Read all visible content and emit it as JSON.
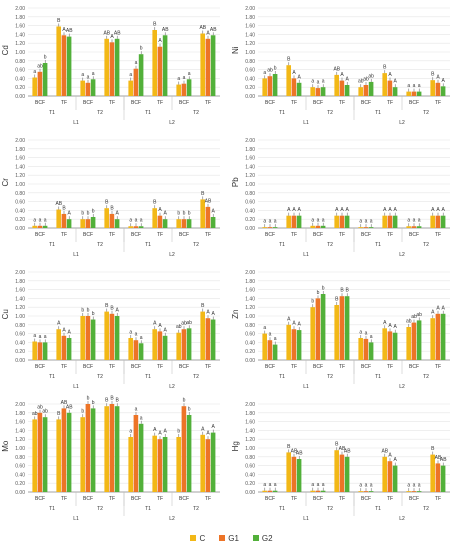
{
  "chart_data": [
    {
      "type": "bar",
      "ylabel": "Cd",
      "ylim": [
        0,
        2
      ],
      "yticks": [
        "0.00",
        "0.20",
        "0.40",
        "0.60",
        "0.80",
        "1.00",
        "1.20",
        "1.40",
        "1.60",
        "1.80",
        "2.00"
      ],
      "categories": [
        "BCF",
        "TF",
        "BCF",
        "TF",
        "BCF",
        "TF",
        "BCF",
        "TF"
      ],
      "groups_t": [
        "T1",
        "T2",
        "T1",
        "T2"
      ],
      "groups_l": [
        "L1",
        "L2"
      ],
      "series": [
        {
          "name": "C",
          "values": [
            0.42,
            1.58,
            0.35,
            1.3,
            0.35,
            1.5,
            0.26,
            1.42
          ]
        },
        {
          "name": "G1",
          "values": [
            0.55,
            1.38,
            0.3,
            1.22,
            0.62,
            1.12,
            0.28,
            1.3
          ]
        },
        {
          "name": "G2",
          "values": [
            0.75,
            1.35,
            0.38,
            1.3,
            0.95,
            1.38,
            0.38,
            1.38
          ]
        }
      ],
      "labels": [
        [
          "a",
          "ab",
          "b"
        ],
        [
          "B",
          "A",
          "AB"
        ],
        [
          "a",
          "a",
          "a"
        ],
        [
          "AB",
          "A",
          "AB"
        ],
        [
          "a",
          "a",
          "b"
        ],
        [
          "B",
          "A",
          "AB"
        ],
        [
          "a",
          "a",
          "a"
        ],
        [
          "AB",
          "A",
          "AB"
        ]
      ]
    },
    {
      "type": "bar",
      "ylabel": "Ni",
      "ylim": [
        0,
        2
      ],
      "yticks": [
        "0.00",
        "0.20",
        "0.40",
        "0.60",
        "0.80",
        "1.00",
        "1.20",
        "1.40",
        "1.60",
        "1.80",
        "2.00"
      ],
      "categories": [
        "BCF",
        "TF",
        "BCF",
        "TF",
        "BCF",
        "TF",
        "BCF",
        "TF"
      ],
      "groups_t": [
        "T1",
        "T2",
        "T1",
        "T2"
      ],
      "groups_l": [
        "L1",
        "L2"
      ],
      "series": [
        {
          "name": "C",
          "values": [
            0.4,
            0.7,
            0.2,
            0.48,
            0.2,
            0.52,
            0.1,
            0.36
          ]
        },
        {
          "name": "G1",
          "values": [
            0.45,
            0.4,
            0.18,
            0.35,
            0.25,
            0.35,
            0.1,
            0.3
          ]
        },
        {
          "name": "G2",
          "values": [
            0.5,
            0.3,
            0.2,
            0.25,
            0.32,
            0.2,
            0.1,
            0.22
          ]
        }
      ],
      "labels": [
        [
          "a",
          "ab",
          "b"
        ],
        [
          "B",
          "A",
          "A"
        ],
        [
          "a",
          "a",
          "a"
        ],
        [
          "AB",
          "A",
          "A"
        ],
        [
          "ab",
          "ab",
          "ab"
        ],
        [
          "B",
          "A",
          "A"
        ],
        [
          "a",
          "a",
          "a"
        ],
        [
          "B",
          "A",
          "A"
        ]
      ]
    },
    {
      "type": "bar",
      "ylabel": "Cr",
      "ylim": [
        0,
        2
      ],
      "yticks": [
        "0.00",
        "0.20",
        "0.40",
        "0.60",
        "0.80",
        "1.00",
        "1.20",
        "1.40",
        "1.60",
        "1.80",
        "2.00"
      ],
      "categories": [
        "BCF",
        "TF",
        "BCF",
        "TF",
        "BCF",
        "TF",
        "BCF",
        "TF"
      ],
      "groups_t": [
        "T1",
        "T2",
        "T1",
        "T2"
      ],
      "groups_l": [
        "L1",
        "L2"
      ],
      "series": [
        {
          "name": "C",
          "values": [
            0.05,
            0.42,
            0.2,
            0.45,
            0.04,
            0.45,
            0.2,
            0.65
          ]
        },
        {
          "name": "G1",
          "values": [
            0.05,
            0.32,
            0.2,
            0.32,
            0.04,
            0.28,
            0.2,
            0.48
          ]
        },
        {
          "name": "G2",
          "values": [
            0.05,
            0.2,
            0.25,
            0.2,
            0.04,
            0.2,
            0.2,
            0.25
          ]
        }
      ],
      "labels": [
        [
          "a",
          "a",
          "a"
        ],
        [
          "AB",
          "B",
          "A"
        ],
        [
          "b",
          "b",
          "b"
        ],
        [
          "B",
          "B",
          "A"
        ],
        [
          "a",
          "a",
          "a"
        ],
        [
          "B",
          "A",
          "A"
        ],
        [
          "b",
          "b",
          "b"
        ],
        [
          "B",
          "AB",
          "A"
        ]
      ]
    },
    {
      "type": "bar",
      "ylabel": "Pb",
      "ylim": [
        0,
        2
      ],
      "yticks": [
        "0.00",
        "0.20",
        "0.40",
        "0.60",
        "0.80",
        "1.00",
        "1.20",
        "1.40",
        "1.60",
        "1.80",
        "2.00"
      ],
      "categories": [
        "BCF",
        "TF",
        "BCF",
        "TF",
        "BCF",
        "TF",
        "BCF",
        "TF"
      ],
      "groups_t": [
        "T1",
        "T2",
        "T1",
        "T2"
      ],
      "groups_l": [
        "L1",
        "L2"
      ],
      "series": [
        {
          "name": "C",
          "values": [
            0.02,
            0.28,
            0.05,
            0.28,
            0.02,
            0.28,
            0.04,
            0.28
          ]
        },
        {
          "name": "G1",
          "values": [
            0.02,
            0.28,
            0.05,
            0.28,
            0.02,
            0.28,
            0.04,
            0.28
          ]
        },
        {
          "name": "G2",
          "values": [
            0.02,
            0.28,
            0.05,
            0.28,
            0.02,
            0.28,
            0.04,
            0.28
          ]
        }
      ],
      "labels": [
        [
          "a",
          "a",
          "a"
        ],
        [
          "A",
          "A",
          "A"
        ],
        [
          "a",
          "a",
          "a"
        ],
        [
          "A",
          "A",
          "A"
        ],
        [
          "a",
          "a",
          "a"
        ],
        [
          "A",
          "A",
          "A"
        ],
        [
          "a",
          "a",
          "a"
        ],
        [
          "A",
          "A",
          "A"
        ]
      ]
    },
    {
      "type": "bar",
      "ylabel": "Cu",
      "ylim": [
        0,
        2
      ],
      "yticks": [
        "0.00",
        "0.20",
        "0.40",
        "0.60",
        "0.80",
        "1.00",
        "1.20",
        "1.40",
        "1.60",
        "1.80",
        "2.00"
      ],
      "categories": [
        "BCF",
        "TF",
        "BCF",
        "TF",
        "BCF",
        "TF",
        "BCF",
        "TF"
      ],
      "groups_t": [
        "T1",
        "T2",
        "T1",
        "T2"
      ],
      "groups_l": [
        "L1",
        "L2"
      ],
      "series": [
        {
          "name": "C",
          "values": [
            0.42,
            0.7,
            1.0,
            1.1,
            0.5,
            0.7,
            0.62,
            1.1
          ]
        },
        {
          "name": "G1",
          "values": [
            0.4,
            0.55,
            1.0,
            1.05,
            0.45,
            0.65,
            0.7,
            0.95
          ]
        },
        {
          "name": "G2",
          "values": [
            0.4,
            0.5,
            0.92,
            1.0,
            0.38,
            0.55,
            0.72,
            0.92
          ]
        }
      ],
      "labels": [
        [
          "a",
          "a",
          "a"
        ],
        [
          "A",
          "A",
          "A"
        ],
        [
          "b",
          "b",
          "b"
        ],
        [
          "B",
          "B",
          "A"
        ],
        [
          "a",
          "a",
          "a"
        ],
        [
          "A",
          "A",
          "A"
        ],
        [
          "ab",
          "ab",
          "ab"
        ],
        [
          "B",
          "A",
          "A"
        ]
      ]
    },
    {
      "type": "bar",
      "ylabel": "Zn",
      "ylim": [
        0,
        2
      ],
      "yticks": [
        "0.00",
        "0.20",
        "0.40",
        "0.60",
        "0.80",
        "1.00",
        "1.20",
        "1.40",
        "1.60",
        "1.80",
        "2.00"
      ],
      "categories": [
        "BCF",
        "TF",
        "BCF",
        "TF",
        "BCF",
        "TF",
        "BCF",
        "TF"
      ],
      "groups_t": [
        "T1",
        "T2",
        "T1",
        "T2"
      ],
      "groups_l": [
        "L1",
        "L2"
      ],
      "series": [
        {
          "name": "C",
          "values": [
            0.6,
            0.8,
            1.2,
            1.25,
            0.5,
            0.72,
            0.75,
            0.95
          ]
        },
        {
          "name": "G1",
          "values": [
            0.45,
            0.7,
            1.4,
            1.45,
            0.48,
            0.65,
            0.85,
            1.05
          ]
        },
        {
          "name": "G2",
          "values": [
            0.35,
            0.68,
            1.5,
            1.45,
            0.4,
            0.62,
            0.9,
            1.05
          ]
        }
      ],
      "labels": [
        [
          "a",
          "a",
          "a"
        ],
        [
          "A",
          "A",
          "A"
        ],
        [
          "b",
          "b",
          "b"
        ],
        [
          "B",
          "B",
          "B"
        ],
        [
          "a",
          "a",
          "a"
        ],
        [
          "A",
          "A",
          "A"
        ],
        [
          "ab",
          "ab",
          "ab"
        ],
        [
          "A",
          "A",
          "A"
        ]
      ]
    },
    {
      "type": "bar",
      "ylabel": "Mo",
      "ylim": [
        0,
        2
      ],
      "yticks": [
        "0.00",
        "0.20",
        "0.40",
        "0.60",
        "0.80",
        "1.00",
        "1.20",
        "1.40",
        "1.60",
        "1.80",
        "2.00"
      ],
      "categories": [
        "BCF",
        "TF",
        "BCF",
        "TF",
        "BCF",
        "TF",
        "BCF",
        "TF"
      ],
      "groups_t": [
        "T1",
        "T2",
        "T1",
        "T2"
      ],
      "groups_l": [
        "L1",
        "L2"
      ],
      "series": [
        {
          "name": "C",
          "values": [
            1.65,
            1.65,
            1.7,
            1.95,
            1.25,
            1.28,
            1.25,
            1.3
          ]
        },
        {
          "name": "G1",
          "values": [
            1.8,
            1.9,
            2.0,
            2.0,
            1.75,
            1.2,
            1.95,
            1.2
          ]
        },
        {
          "name": "G2",
          "values": [
            1.7,
            1.8,
            1.9,
            1.95,
            1.55,
            1.25,
            1.75,
            1.35
          ]
        }
      ],
      "labels": [
        [
          "ab",
          "ab",
          "ab"
        ],
        [
          "B",
          "AB",
          "AB"
        ],
        [
          "b",
          "b",
          "b"
        ],
        [
          "B",
          "B",
          "B"
        ],
        [
          "a",
          "a",
          "a"
        ],
        [
          "A",
          "A",
          "A"
        ],
        [
          "b",
          "b",
          "b"
        ],
        [
          "A",
          "A",
          "A"
        ]
      ]
    },
    {
      "type": "bar",
      "ylabel": "Hg",
      "ylim": [
        0,
        2
      ],
      "yticks": [
        "0.00",
        "0.20",
        "0.40",
        "0.60",
        "0.80",
        "1.00",
        "1.20",
        "1.40",
        "1.60",
        "1.80",
        "2.00"
      ],
      "categories": [
        "BCF",
        "TF",
        "BCF",
        "TF",
        "BCF",
        "TF",
        "BCF",
        "TF"
      ],
      "groups_t": [
        "T1",
        "T2",
        "T1",
        "T2"
      ],
      "groups_l": [
        "L1",
        "L2"
      ],
      "series": [
        {
          "name": "C",
          "values": [
            0.03,
            0.9,
            0.03,
            0.95,
            0.02,
            0.8,
            0.02,
            0.85
          ]
        },
        {
          "name": "G1",
          "values": [
            0.03,
            0.8,
            0.03,
            0.85,
            0.02,
            0.7,
            0.02,
            0.65
          ]
        },
        {
          "name": "G2",
          "values": [
            0.03,
            0.75,
            0.03,
            0.8,
            0.02,
            0.6,
            0.02,
            0.6
          ]
        }
      ],
      "labels": [
        [
          "a",
          "a",
          "a"
        ],
        [
          "B",
          "AB",
          "AB"
        ],
        [
          "a",
          "a",
          "a"
        ],
        [
          "B",
          "AB",
          "AB"
        ],
        [
          "a",
          "a",
          "a"
        ],
        [
          "AB",
          "A",
          "A"
        ],
        [
          "a",
          "a",
          "a"
        ],
        [
          "B",
          "AB",
          "AB"
        ]
      ]
    }
  ],
  "legend": {
    "items": [
      {
        "label": "C",
        "color": "#F2B817"
      },
      {
        "label": "G1",
        "color": "#ED7427"
      },
      {
        "label": "G2",
        "color": "#52B03A"
      }
    ]
  }
}
